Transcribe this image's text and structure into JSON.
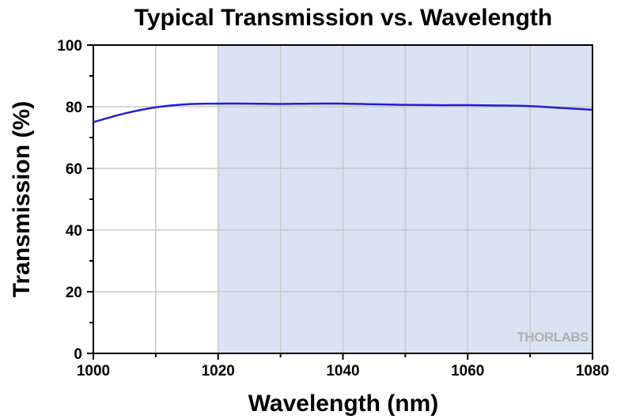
{
  "chart_data": {
    "type": "line",
    "title": "Typical Transmission vs. Wavelength",
    "xlabel": "Wavelength (nm)",
    "ylabel": "Transmission (%)",
    "xlim": [
      1000,
      1080
    ],
    "ylim": [
      0,
      100
    ],
    "x_ticks": [
      1000,
      1020,
      1040,
      1060,
      1080
    ],
    "y_ticks": [
      0,
      20,
      40,
      60,
      80,
      100
    ],
    "grid": true,
    "highlight_range": {
      "x": [
        1020,
        1080
      ],
      "color": "#dae3f3"
    },
    "series": [
      {
        "color": "#1f1fd6",
        "x": [
          1000,
          1005,
          1010,
          1015,
          1020,
          1025,
          1030,
          1035,
          1040,
          1045,
          1050,
          1055,
          1060,
          1065,
          1070,
          1075,
          1080
        ],
        "y": [
          75.0,
          77.8,
          79.8,
          80.8,
          81.0,
          81.0,
          80.9,
          81.0,
          81.0,
          80.8,
          80.6,
          80.5,
          80.5,
          80.4,
          80.2,
          79.6,
          79.0
        ]
      }
    ]
  },
  "watermark": {
    "text": "THORLABS"
  }
}
